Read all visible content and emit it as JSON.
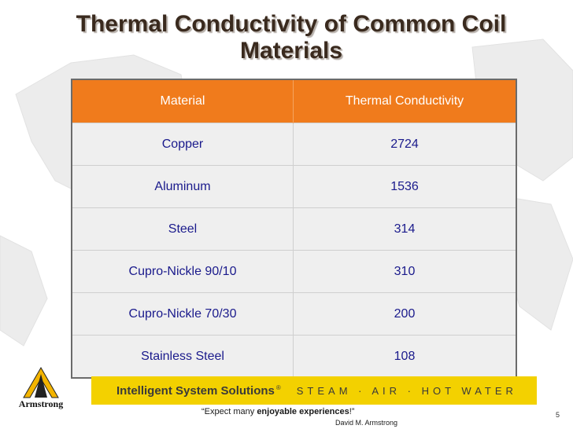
{
  "title": "Thermal Conductivity of Common Coil Materials",
  "table": {
    "headers": [
      "Material",
      "Thermal Conductivity"
    ],
    "rows": [
      [
        "Copper",
        "2724"
      ],
      [
        "Aluminum",
        "1536"
      ],
      [
        "Steel",
        "314"
      ],
      [
        "Cupro-Nickle 90/10",
        "310"
      ],
      [
        "Cupro-Nickle 70/30",
        "200"
      ],
      [
        "Stainless Steel",
        "108"
      ]
    ]
  },
  "logo_text": "Armstrong",
  "banner": {
    "left": "Intelligent System Solutions",
    "reg": "®",
    "right": "STEAM · AIR · HOT WATER"
  },
  "quote": {
    "prefix": "“Expect many ",
    "emphasis": "enjoyable experiences",
    "suffix": "!”",
    "author": "David M. Armstrong"
  },
  "page_number": "5",
  "colors": {
    "header_bg": "#f07b1c",
    "cell_bg": "#efefef",
    "cell_text": "#1a1a8c",
    "banner_bg": "#f3d100"
  }
}
